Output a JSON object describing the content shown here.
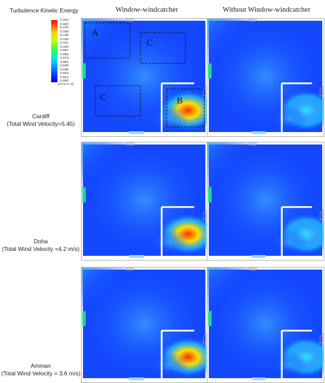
{
  "legend": {
    "title": "Turbulence Kinetic Energy",
    "ticks": [
      "0.194",
      "0.182",
      "0.170",
      "0.158",
      "0.145",
      "0.133",
      "0.121",
      "0.109",
      "0.097",
      "0.085",
      "0.073",
      "0.061",
      "0.048",
      "0.036",
      "0.024",
      "0.012",
      "0.000"
    ],
    "units": "[m^2 s^-2]"
  },
  "columns": [
    "Window-windcatcher",
    "Without Window-windcatcher"
  ],
  "rows": [
    {
      "city": "Cardiff",
      "velocity": "(Total Wind Velocity=5.45)"
    },
    {
      "city": "Doha",
      "velocity": "(Total Wind Velocity =4.2 m/s)"
    },
    {
      "city": "Amman",
      "velocity": "(Total Wind Velocity = 3.6 m/s)"
    }
  ],
  "zones": [
    "A",
    "B",
    "C",
    "C"
  ]
}
